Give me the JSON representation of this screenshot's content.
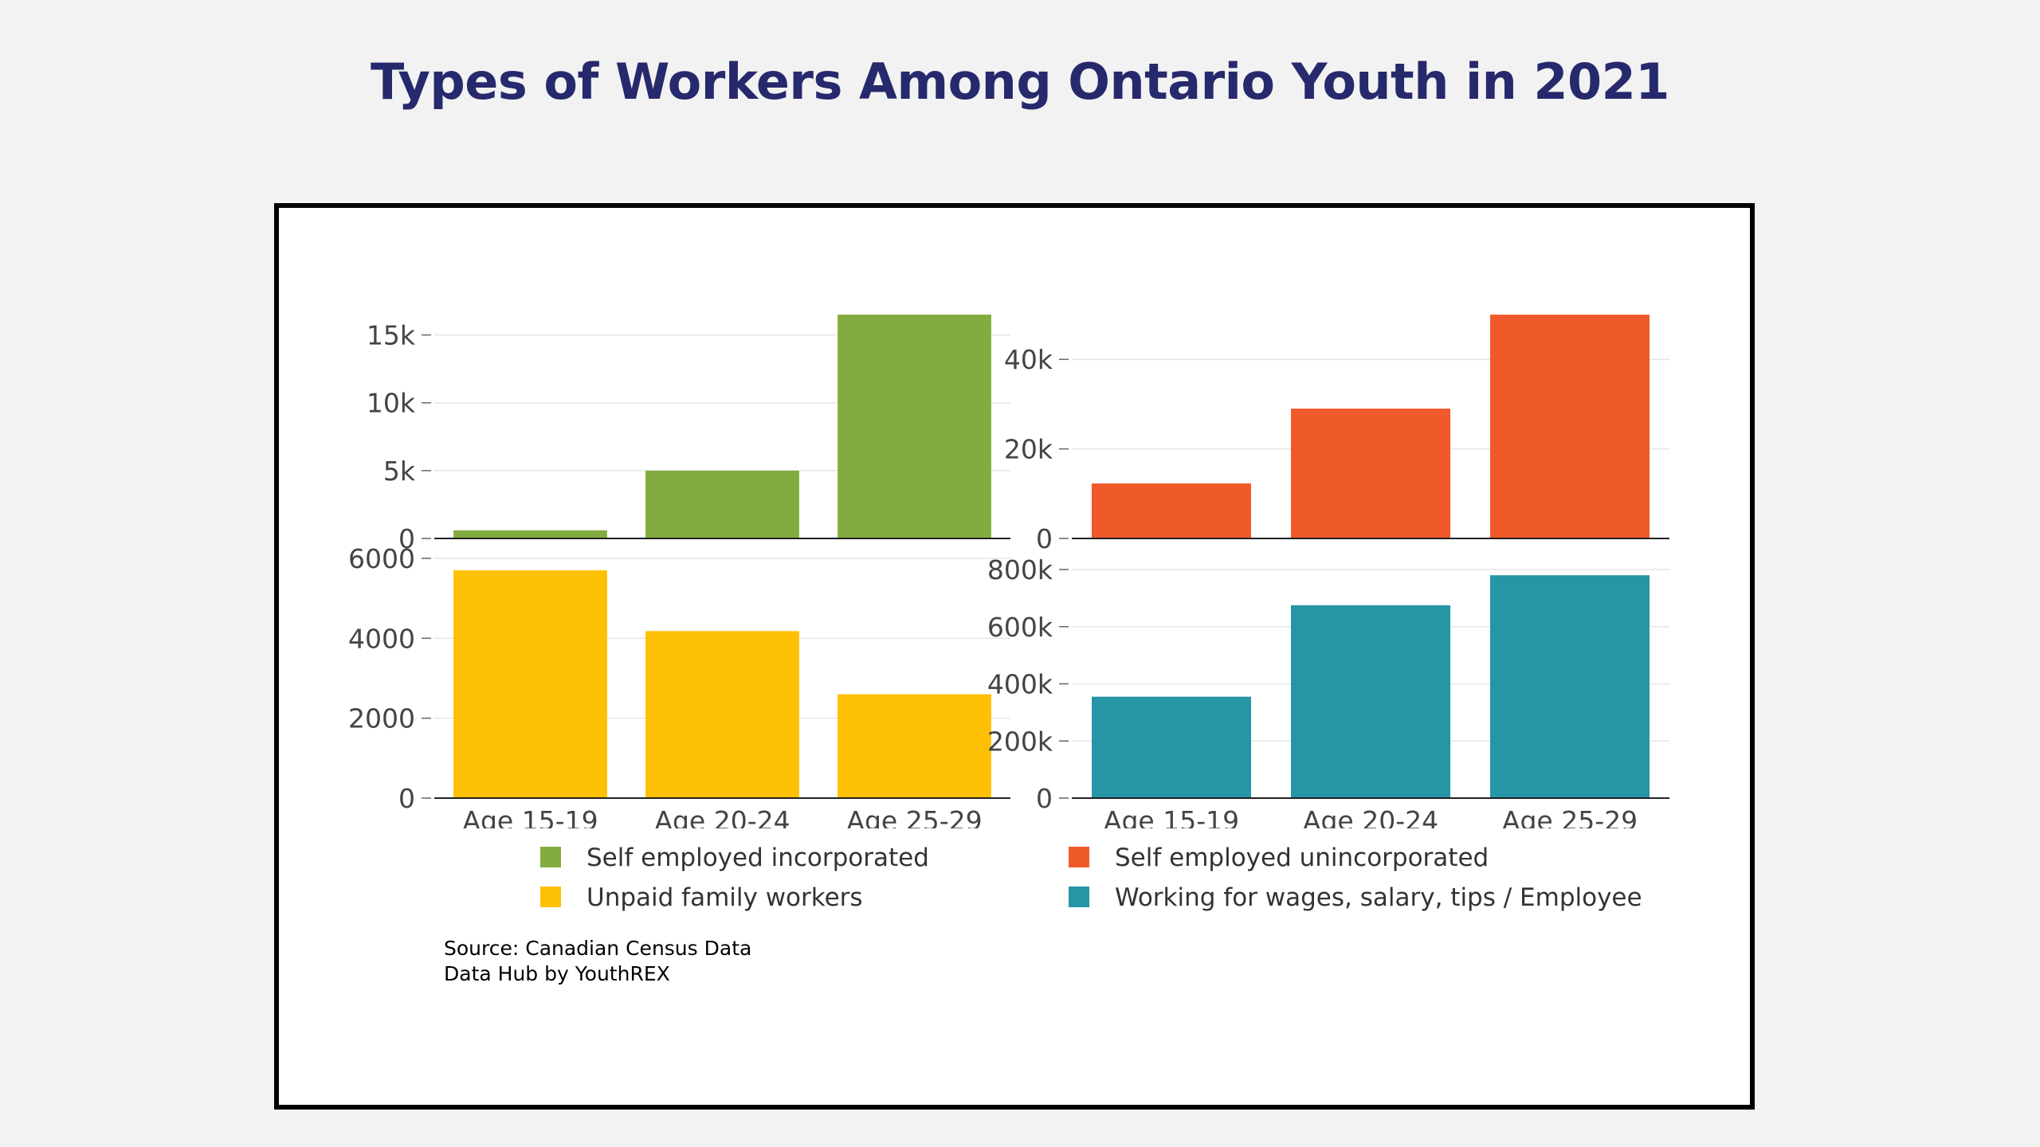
{
  "title": "Types of Workers Among Ontario Youth in 2021",
  "categories": [
    "Age 15-19",
    "Age 20-24",
    "Age 25-29"
  ],
  "chart_data": [
    {
      "type": "bar",
      "position": "top-left",
      "series_name": "Self employed incorporated",
      "color": "#82ac3f",
      "categories": [
        "Age 15-19",
        "Age 20-24",
        "Age 25-29"
      ],
      "values": [
        600,
        5000,
        16500
      ],
      "ylim": [
        0,
        16500
      ],
      "yticks": [
        0,
        5000,
        10000,
        15000
      ],
      "ytick_labels": [
        "0",
        "5k",
        "10k",
        "15k"
      ],
      "show_x_labels": false
    },
    {
      "type": "bar",
      "position": "top-right",
      "series_name": "Self employed unincorporated",
      "color": "#f05a2a",
      "categories": [
        "Age 15-19",
        "Age 20-24",
        "Age 25-29"
      ],
      "values": [
        12300,
        29000,
        50000
      ],
      "ylim": [
        0,
        50000
      ],
      "yticks": [
        0,
        20000,
        40000
      ],
      "ytick_labels": [
        "0",
        "20k",
        "40k"
      ],
      "show_x_labels": false
    },
    {
      "type": "bar",
      "position": "bottom-left",
      "series_name": "Unpaid family workers",
      "color": "#fdc004",
      "categories": [
        "Age 15-19",
        "Age 20-24",
        "Age 25-29"
      ],
      "values": [
        5700,
        4180,
        2600
      ],
      "ylim": [
        0,
        6000
      ],
      "yticks": [
        0,
        2000,
        4000,
        6000
      ],
      "ytick_labels": [
        "0",
        "2000",
        "4000",
        "6000"
      ],
      "show_x_labels": true
    },
    {
      "type": "bar",
      "position": "bottom-right",
      "series_name": "Working for wages, salary, tips / Employee",
      "color": "#2695a6",
      "categories": [
        "Age 15-19",
        "Age 20-24",
        "Age 25-29"
      ],
      "values": [
        355000,
        675000,
        780000
      ],
      "ylim": [
        0,
        800000
      ],
      "yticks": [
        0,
        200000,
        400000,
        600000,
        800000
      ],
      "ytick_labels": [
        "0",
        "200k",
        "400k",
        "600k",
        "800k"
      ],
      "show_x_labels": true
    }
  ],
  "legend": [
    {
      "label": "Self employed incorporated",
      "color": "#82ac3f"
    },
    {
      "label": "Self employed unincorporated",
      "color": "#f05a2a"
    },
    {
      "label": "Unpaid family workers",
      "color": "#fdc004"
    },
    {
      "label": "Working for wages, salary, tips / Employee",
      "color": "#2695a6"
    }
  ],
  "source": {
    "line1": "Source: Canadian Census Data",
    "line2": "Data Hub by YouthREX"
  }
}
